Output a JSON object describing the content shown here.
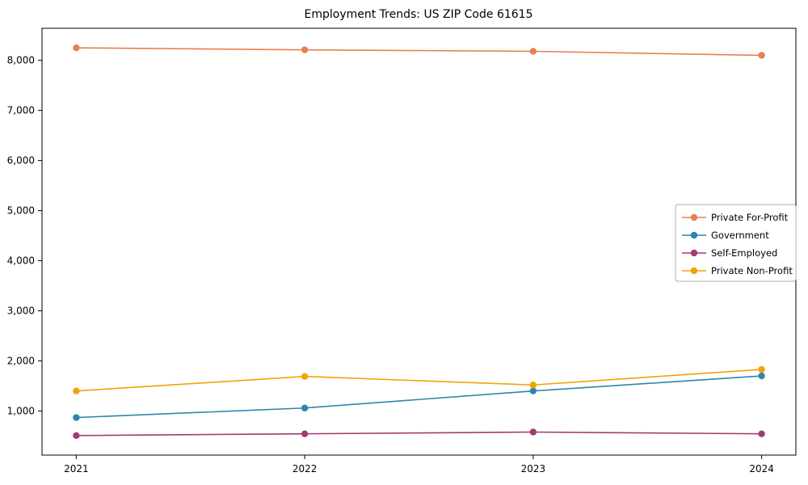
{
  "chart_data": {
    "type": "line",
    "title": "Employment Trends: US ZIP Code 61615",
    "xlabel": "",
    "ylabel": "",
    "x": [
      2021,
      2022,
      2023,
      2024
    ],
    "x_tick_labels": [
      "2021",
      "2022",
      "2023",
      "2024"
    ],
    "series": [
      {
        "name": "Private For-Profit",
        "color": "#E8804C",
        "values": [
          8250,
          8210,
          8180,
          8100
        ]
      },
      {
        "name": "Government",
        "color": "#2E86AB",
        "values": [
          870,
          1060,
          1400,
          1700
        ]
      },
      {
        "name": "Self-Employed",
        "color": "#A23B72",
        "values": [
          510,
          545,
          580,
          545
        ]
      },
      {
        "name": "Private Non-Profit",
        "color": "#F0A30A",
        "values": [
          1400,
          1690,
          1520,
          1830
        ]
      }
    ],
    "yticks": [
      1000,
      2000,
      3000,
      4000,
      5000,
      6000,
      7000,
      8000
    ],
    "ytick_labels": [
      "1,000",
      "2,000",
      "3,000",
      "4,000",
      "5,000",
      "6,000",
      "7,000",
      "8,000"
    ],
    "xlim": [
      2020.85,
      2024.15
    ],
    "ylim": [
      120,
      8640
    ],
    "grid": false,
    "marker": "circle",
    "legend_position": "right-center",
    "axis_color": "#000000",
    "legend_border_color": "#b0b0b0"
  }
}
